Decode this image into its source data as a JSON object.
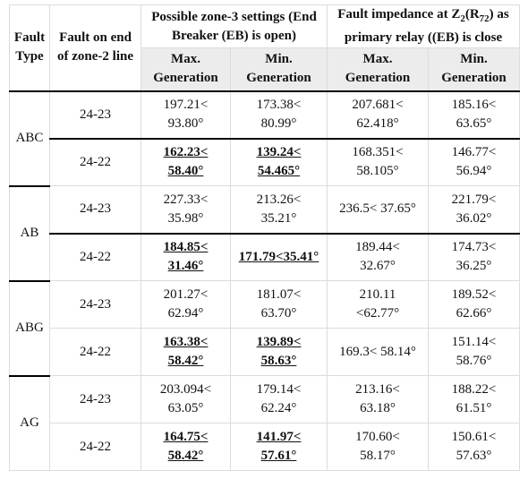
{
  "table": {
    "header": {
      "fault_type": "Fault Type",
      "fault_line": "Fault on end of zone-2 line",
      "group1": "Possible zone-3 settings (End Breaker (EB) is open)",
      "group2": [
        "Fault impedance at Z",
        "2",
        "(R",
        "72",
        ") as primary relay ((EB) is close"
      ],
      "subheaders": [
        "Max. Generation",
        "Min. Generation",
        "Max. Generation",
        "Min. Generation"
      ]
    },
    "groups": [
      {
        "fault_type": "ABC",
        "rows": [
          {
            "line": "24-23",
            "cells": [
              [
                "197.21<",
                "93.80°"
              ],
              [
                "173.38<",
                "80.99°"
              ],
              [
                "207.681<",
                "62.418°"
              ],
              [
                "185.16<",
                "63.65°"
              ]
            ],
            "emphasized": [
              false,
              false,
              false,
              false
            ]
          },
          {
            "line": "24-22",
            "cells": [
              [
                "162.23<",
                "58.40°"
              ],
              [
                "139.24<",
                "54.465°"
              ],
              [
                "168.351<",
                "58.105°"
              ],
              [
                "146.77<",
                "56.94°"
              ]
            ],
            "emphasized": [
              true,
              true,
              false,
              false
            ]
          }
        ]
      },
      {
        "fault_type": "AB",
        "rows": [
          {
            "line": "24-23",
            "cells": [
              [
                "227.33<",
                "35.98°"
              ],
              [
                "213.26<",
                "35.21°"
              ],
              [
                "236.5< 37.65°"
              ],
              [
                "221.79<",
                "36.02°"
              ]
            ],
            "emphasized": [
              false,
              false,
              false,
              false
            ]
          },
          {
            "line": "24-22",
            "cells": [
              [
                "184.85<",
                "31.46°"
              ],
              [
                "171.79<35.41°"
              ],
              [
                "189.44<",
                "32.67°"
              ],
              [
                "174.73<",
                "36.25°"
              ]
            ],
            "emphasized": [
              true,
              true,
              false,
              false
            ]
          }
        ]
      },
      {
        "fault_type": "ABG",
        "rows": [
          {
            "line": "24-23",
            "cells": [
              [
                "201.27<",
                "62.94°"
              ],
              [
                "181.07<",
                "63.70°"
              ],
              [
                "210.11",
                "<62.77°"
              ],
              [
                "189.52<",
                "62.66°"
              ]
            ],
            "emphasized": [
              false,
              false,
              false,
              false
            ]
          },
          {
            "line": "24-22",
            "cells": [
              [
                "163.38<",
                "58.42°"
              ],
              [
                "139.89<",
                "58.63°"
              ],
              [
                "169.3< 58.14°"
              ],
              [
                "151.14<",
                "58.76°"
              ]
            ],
            "emphasized": [
              true,
              true,
              false,
              false
            ]
          }
        ]
      },
      {
        "fault_type": "AG",
        "rows": [
          {
            "line": "24-23",
            "cells": [
              [
                "203.094<",
                "63.05°"
              ],
              [
                "179.14<",
                "62.24°"
              ],
              [
                "213.16<",
                "63.18°"
              ],
              [
                "188.22<",
                "61.51°"
              ]
            ],
            "emphasized": [
              false,
              false,
              false,
              false
            ]
          },
          {
            "line": "24-22",
            "cells": [
              [
                "164.75<",
                "58.42°"
              ],
              [
                "141.97<",
                "57.61°"
              ],
              [
                "170.60<",
                "58.17°"
              ],
              [
                "150.61<",
                "57.63°"
              ]
            ],
            "emphasized": [
              true,
              true,
              false,
              false
            ]
          }
        ]
      }
    ]
  }
}
